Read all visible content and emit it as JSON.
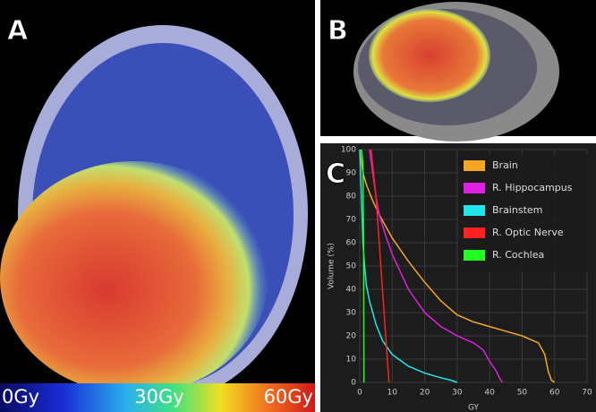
{
  "panels": {
    "a": {
      "label": "A"
    },
    "b": {
      "label": "B"
    },
    "c": {
      "label": "C"
    }
  },
  "colorbar": {
    "labels": [
      "0Gy",
      "30Gy",
      "60Gy"
    ]
  },
  "chart_data": {
    "type": "line",
    "ylabel": "Volume (%)",
    "xlabel": "GY",
    "xlim": [
      0,
      70
    ],
    "xticks": [
      0,
      10,
      20,
      30,
      40,
      50,
      60,
      70
    ],
    "ylim": [
      0,
      100
    ],
    "yticks": [
      0,
      10,
      20,
      30,
      40,
      50,
      60,
      70,
      80,
      90,
      100
    ],
    "grid": true,
    "legend": "upper right",
    "series": [
      {
        "name": "Brain",
        "color": "#f5a623",
        "x": [
          0,
          1,
          2,
          4,
          6,
          8,
          10,
          15,
          20,
          25,
          30,
          35,
          40,
          45,
          50,
          55,
          57,
          58,
          59,
          60
        ],
        "values": [
          100,
          90,
          85,
          78,
          72,
          67,
          62,
          52,
          43,
          35,
          29,
          26,
          24,
          22,
          20,
          17,
          12,
          5,
          1,
          0
        ]
      },
      {
        "name": "R. Hippocampus",
        "color": "#e020e0",
        "x": [
          3,
          4,
          5,
          6,
          8,
          10,
          15,
          20,
          25,
          30,
          35,
          38,
          40,
          42,
          43,
          44
        ],
        "values": [
          100,
          90,
          80,
          72,
          63,
          55,
          40,
          30,
          24,
          20,
          17,
          14,
          9,
          5,
          2,
          0
        ]
      },
      {
        "name": "Brainstem",
        "color": "#20e8e8",
        "x": [
          0,
          0.5,
          1,
          1.5,
          2,
          3,
          5,
          7,
          10,
          15,
          20,
          25,
          28,
          30
        ],
        "values": [
          100,
          80,
          60,
          50,
          42,
          35,
          25,
          18,
          12,
          7,
          4,
          2,
          1,
          0
        ]
      },
      {
        "name": "R. Optic Nerve",
        "color": "#ff2020",
        "x": [
          3.5,
          5,
          6,
          7,
          8,
          8.5,
          9
        ],
        "values": [
          100,
          80,
          60,
          40,
          20,
          10,
          0
        ]
      },
      {
        "name": "R. Cochlea",
        "color": "#20ff20",
        "x": [
          0.5,
          1,
          1.2,
          1.3
        ],
        "values": [
          100,
          95,
          50,
          0
        ]
      }
    ]
  }
}
